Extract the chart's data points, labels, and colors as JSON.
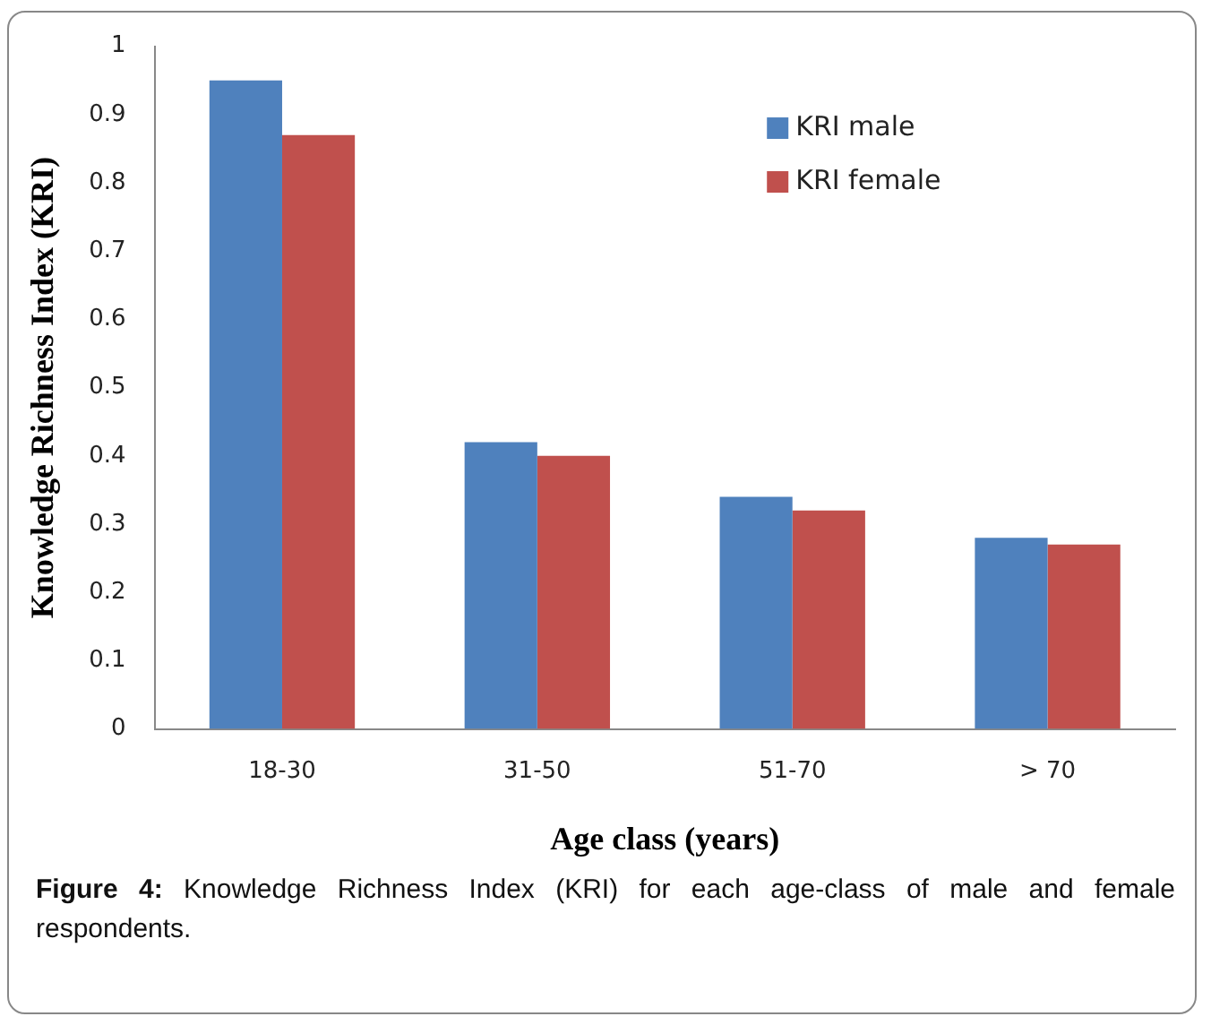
{
  "chart_data": {
    "type": "bar",
    "xlabel": "Age class (years)",
    "ylabel": "Knowledge Richness Index (KRI)",
    "categories": [
      "18-30",
      "31-50",
      "51-70",
      "> 70"
    ],
    "series": [
      {
        "name": "KRI male",
        "color": "#4f81bd",
        "values": [
          0.95,
          0.42,
          0.34,
          0.28
        ]
      },
      {
        "name": "KRI female",
        "color": "#c0504d",
        "values": [
          0.87,
          0.4,
          0.32,
          0.27
        ]
      }
    ],
    "ylim": [
      0,
      1
    ],
    "yticks": [
      0,
      0.1,
      0.2,
      0.3,
      0.4,
      0.5,
      0.6,
      0.7,
      0.8,
      0.9,
      1
    ],
    "grid": false,
    "legend": "top right",
    "annotations": [
      "Figure 4: Knowledge Richness Index (KRI) for each age-class of male and female respondents."
    ]
  }
}
